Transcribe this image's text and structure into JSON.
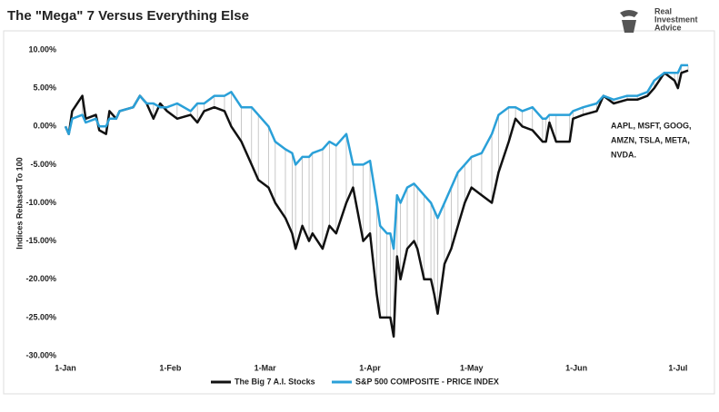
{
  "chart_data": {
    "type": "line",
    "title": "The \"Mega\" 7  Versus Everything Else",
    "logo": [
      "Real",
      "Investment",
      "Advice"
    ],
    "ylabel": "Indices Rebased To 100",
    "annotation": [
      "AAPL, MSFT, GOOG,",
      "AMZN, TSLA, META,",
      "NVDA."
    ],
    "x": [
      0,
      1,
      2,
      5,
      6,
      9,
      10,
      12,
      13,
      15,
      16,
      20,
      22,
      24,
      26,
      28,
      30,
      33,
      37,
      39,
      41,
      44,
      47,
      49,
      52,
      55,
      57,
      60,
      62,
      65,
      67,
      68,
      70,
      72,
      73,
      76,
      78,
      80,
      83,
      85,
      88,
      90,
      92,
      93,
      95,
      96,
      97,
      98,
      99,
      101,
      103,
      104,
      106,
      108,
      109,
      110,
      112,
      114,
      116,
      118,
      120,
      123,
      126,
      128,
      131,
      133,
      135,
      138,
      141,
      142,
      143,
      145,
      149,
      150,
      153,
      157,
      159,
      162,
      166,
      169,
      172,
      174,
      177,
      180,
      181,
      182,
      184
    ],
    "series": [
      {
        "name": "The Big 7 A.I. Stocks",
        "color": "#111111",
        "values": [
          0,
          -1,
          2,
          4,
          1,
          1.5,
          -0.5,
          -1,
          2,
          1,
          2,
          2.5,
          4,
          3,
          1,
          3,
          2,
          1,
          1.5,
          0.5,
          2,
          2.5,
          2,
          0,
          -2,
          -5,
          -7,
          -8,
          -10,
          -12,
          -14,
          -16,
          -13,
          -15,
          -14,
          -16,
          -13,
          -14,
          -10,
          -8,
          -15,
          -14,
          -22,
          -25,
          -25,
          -25,
          -27.5,
          -17,
          -20,
          -16,
          -15,
          -16,
          -20,
          -20,
          -22,
          -24.5,
          -18,
          -16,
          -13,
          -10,
          -8,
          -9,
          -10,
          -6,
          -2,
          1,
          0,
          -0.5,
          -2,
          -2,
          0.5,
          -2,
          -2,
          1,
          1.5,
          2,
          4,
          3,
          3.5,
          3.5,
          4,
          5,
          7,
          6,
          5,
          7,
          7.3
        ]
      },
      {
        "name": "S&P 500 COMPOSITE - PRICE INDEX",
        "color": "#2aa0d8",
        "values": [
          0,
          -1,
          1,
          1.5,
          0.5,
          1,
          0,
          0,
          1,
          1,
          2,
          2.5,
          4,
          3,
          3,
          2.5,
          2.5,
          3,
          2,
          3,
          3,
          4,
          4,
          4.5,
          2.5,
          2.5,
          1.5,
          0,
          -2,
          -3,
          -3.5,
          -5,
          -4,
          -4,
          -3.5,
          -3,
          -2,
          -2.5,
          -1,
          -5,
          -5,
          -4.5,
          -10,
          -13,
          -14,
          -14,
          -16,
          -9,
          -10,
          -8,
          -7.5,
          -8,
          -9,
          -10,
          -11,
          -12,
          -10,
          -8,
          -6,
          -5,
          -4,
          -3.5,
          -1,
          1.5,
          2.5,
          2.5,
          2,
          2.5,
          1,
          1,
          1.5,
          1.5,
          1.5,
          2,
          2.5,
          3,
          4,
          3.5,
          4,
          4,
          4.5,
          6,
          7,
          7,
          7,
          8,
          8
        ]
      }
    ],
    "xlim": [
      0,
      184
    ],
    "xticks": [
      {
        "value": 0,
        "label": "1-Jan"
      },
      {
        "value": 31,
        "label": "1-Feb"
      },
      {
        "value": 59,
        "label": "1-Mar"
      },
      {
        "value": 90,
        "label": "1-Apr"
      },
      {
        "value": 120,
        "label": "1-May"
      },
      {
        "value": 151,
        "label": "1-Jun"
      },
      {
        "value": 181,
        "label": "1-Jul"
      }
    ],
    "ylim": [
      -30,
      10
    ],
    "yticks": [
      {
        "value": -30,
        "label": "-30.00%"
      },
      {
        "value": -25,
        "label": "-25.00%"
      },
      {
        "value": -20,
        "label": "-20.00%"
      },
      {
        "value": -15,
        "label": "-15.00%"
      },
      {
        "value": -10,
        "label": "-10.00%"
      },
      {
        "value": -5,
        "label": "-5.00%"
      },
      {
        "value": 0,
        "label": "0.00%"
      },
      {
        "value": 5,
        "label": "5.00%"
      },
      {
        "value": 10,
        "label": "10.00%"
      }
    ]
  }
}
